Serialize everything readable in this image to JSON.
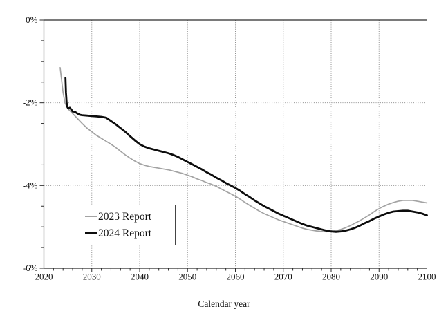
{
  "chart_data": {
    "type": "line",
    "title": "",
    "xlabel": "Calendar year",
    "ylabel": "",
    "xlim": [
      2020,
      2100
    ],
    "ylim": [
      -6,
      0
    ],
    "grid": "dotted",
    "legend_position": "inside-lower-left",
    "colors": {
      "grid": "#8f8f8f",
      "axis": "#2b2b2b",
      "text": "#111111"
    },
    "x_minor_step": 2,
    "y_minor_step": 0.5,
    "xticks": [
      {
        "v": 2020,
        "label": "2020"
      },
      {
        "v": 2030,
        "label": "2030"
      },
      {
        "v": 2040,
        "label": "2040"
      },
      {
        "v": 2050,
        "label": "2050"
      },
      {
        "v": 2060,
        "label": "2060"
      },
      {
        "v": 2070,
        "label": "2070"
      },
      {
        "v": 2080,
        "label": "2080"
      },
      {
        "v": 2090,
        "label": "2090"
      },
      {
        "v": 2100,
        "label": "2100"
      }
    ],
    "yticks": [
      {
        "v": 0,
        "label": "0%"
      },
      {
        "v": -2,
        "label": "-2%"
      },
      {
        "v": -4,
        "label": "-4%"
      },
      {
        "v": -6,
        "label": "-6%"
      }
    ],
    "series": [
      {
        "name": "2023 Report",
        "color": "#a3a3a3",
        "width": 1.7,
        "points": [
          [
            2023.4,
            -1.15
          ],
          [
            2023.7,
            -1.45
          ],
          [
            2024.0,
            -1.75
          ],
          [
            2024.4,
            -2.0
          ],
          [
            2025,
            -2.14
          ],
          [
            2026,
            -2.26
          ],
          [
            2027,
            -2.38
          ],
          [
            2028,
            -2.5
          ],
          [
            2029,
            -2.61
          ],
          [
            2030,
            -2.7
          ],
          [
            2031,
            -2.79
          ],
          [
            2032,
            -2.86
          ],
          [
            2033,
            -2.93
          ],
          [
            2034,
            -3.0
          ],
          [
            2035,
            -3.08
          ],
          [
            2036,
            -3.17
          ],
          [
            2037,
            -3.26
          ],
          [
            2038,
            -3.34
          ],
          [
            2039,
            -3.41
          ],
          [
            2040,
            -3.47
          ],
          [
            2041,
            -3.51
          ],
          [
            2042,
            -3.54
          ],
          [
            2043,
            -3.56
          ],
          [
            2044,
            -3.58
          ],
          [
            2045,
            -3.6
          ],
          [
            2046,
            -3.62
          ],
          [
            2047,
            -3.65
          ],
          [
            2048,
            -3.68
          ],
          [
            2049,
            -3.71
          ],
          [
            2050,
            -3.75
          ],
          [
            2051,
            -3.79
          ],
          [
            2052,
            -3.84
          ],
          [
            2053,
            -3.88
          ],
          [
            2054,
            -3.93
          ],
          [
            2055,
            -3.97
          ],
          [
            2056,
            -4.02
          ],
          [
            2057,
            -4.08
          ],
          [
            2058,
            -4.14
          ],
          [
            2059,
            -4.2
          ],
          [
            2060,
            -4.26
          ],
          [
            2061,
            -4.33
          ],
          [
            2062,
            -4.41
          ],
          [
            2063,
            -4.48
          ],
          [
            2064,
            -4.55
          ],
          [
            2065,
            -4.62
          ],
          [
            2066,
            -4.68
          ],
          [
            2067,
            -4.73
          ],
          [
            2068,
            -4.78
          ],
          [
            2069,
            -4.83
          ],
          [
            2070,
            -4.87
          ],
          [
            2071,
            -4.91
          ],
          [
            2072,
            -4.95
          ],
          [
            2073,
            -4.99
          ],
          [
            2074,
            -5.03
          ],
          [
            2075,
            -5.06
          ],
          [
            2076,
            -5.08
          ],
          [
            2077,
            -5.1
          ],
          [
            2078,
            -5.11
          ],
          [
            2079,
            -5.12
          ],
          [
            2080,
            -5.11
          ],
          [
            2081,
            -5.09
          ],
          [
            2082,
            -5.06
          ],
          [
            2083,
            -5.02
          ],
          [
            2084,
            -4.97
          ],
          [
            2085,
            -4.91
          ],
          [
            2086,
            -4.85
          ],
          [
            2087,
            -4.78
          ],
          [
            2088,
            -4.71
          ],
          [
            2089,
            -4.63
          ],
          [
            2090,
            -4.56
          ],
          [
            2091,
            -4.5
          ],
          [
            2092,
            -4.45
          ],
          [
            2093,
            -4.41
          ],
          [
            2094,
            -4.38
          ],
          [
            2095,
            -4.36
          ],
          [
            2096,
            -4.36
          ],
          [
            2097,
            -4.36
          ],
          [
            2098,
            -4.38
          ],
          [
            2099,
            -4.4
          ],
          [
            2100,
            -4.42
          ]
        ]
      },
      {
        "name": "2024 Report",
        "color": "#0d0d0d",
        "width": 2.8,
        "points": [
          [
            2024.5,
            -1.4
          ],
          [
            2024.6,
            -1.75
          ],
          [
            2024.75,
            -2.0
          ],
          [
            2024.9,
            -2.1
          ],
          [
            2025.1,
            -2.14
          ],
          [
            2025.4,
            -2.12
          ],
          [
            2025.7,
            -2.16
          ],
          [
            2026,
            -2.21
          ],
          [
            2026.5,
            -2.22
          ],
          [
            2027,
            -2.26
          ],
          [
            2027.5,
            -2.29
          ],
          [
            2028,
            -2.3
          ],
          [
            2029,
            -2.31
          ],
          [
            2030,
            -2.32
          ],
          [
            2031,
            -2.33
          ],
          [
            2032,
            -2.34
          ],
          [
            2033,
            -2.36
          ],
          [
            2034,
            -2.44
          ],
          [
            2035,
            -2.52
          ],
          [
            2036,
            -2.61
          ],
          [
            2037,
            -2.7
          ],
          [
            2038,
            -2.81
          ],
          [
            2039,
            -2.91
          ],
          [
            2040,
            -3.0
          ],
          [
            2041,
            -3.06
          ],
          [
            2042,
            -3.1
          ],
          [
            2043,
            -3.13
          ],
          [
            2044,
            -3.16
          ],
          [
            2045,
            -3.19
          ],
          [
            2046,
            -3.22
          ],
          [
            2047,
            -3.26
          ],
          [
            2048,
            -3.31
          ],
          [
            2049,
            -3.37
          ],
          [
            2050,
            -3.43
          ],
          [
            2051,
            -3.49
          ],
          [
            2052,
            -3.55
          ],
          [
            2053,
            -3.61
          ],
          [
            2054,
            -3.68
          ],
          [
            2055,
            -3.74
          ],
          [
            2056,
            -3.81
          ],
          [
            2057,
            -3.87
          ],
          [
            2058,
            -3.94
          ],
          [
            2059,
            -4.0
          ],
          [
            2060,
            -4.06
          ],
          [
            2061,
            -4.13
          ],
          [
            2062,
            -4.21
          ],
          [
            2063,
            -4.28
          ],
          [
            2064,
            -4.36
          ],
          [
            2065,
            -4.43
          ],
          [
            2066,
            -4.5
          ],
          [
            2067,
            -4.56
          ],
          [
            2068,
            -4.62
          ],
          [
            2069,
            -4.68
          ],
          [
            2070,
            -4.73
          ],
          [
            2071,
            -4.78
          ],
          [
            2072,
            -4.83
          ],
          [
            2073,
            -4.88
          ],
          [
            2074,
            -4.93
          ],
          [
            2075,
            -4.97
          ],
          [
            2076,
            -5.0
          ],
          [
            2077,
            -5.03
          ],
          [
            2078,
            -5.06
          ],
          [
            2079,
            -5.09
          ],
          [
            2080,
            -5.11
          ],
          [
            2081,
            -5.12
          ],
          [
            2082,
            -5.11
          ],
          [
            2083,
            -5.09
          ],
          [
            2084,
            -5.06
          ],
          [
            2085,
            -5.02
          ],
          [
            2086,
            -4.97
          ],
          [
            2087,
            -4.91
          ],
          [
            2088,
            -4.86
          ],
          [
            2089,
            -4.8
          ],
          [
            2090,
            -4.75
          ],
          [
            2091,
            -4.7
          ],
          [
            2092,
            -4.66
          ],
          [
            2093,
            -4.63
          ],
          [
            2094,
            -4.62
          ],
          [
            2095,
            -4.61
          ],
          [
            2096,
            -4.61
          ],
          [
            2097,
            -4.63
          ],
          [
            2098,
            -4.65
          ],
          [
            2099,
            -4.68
          ],
          [
            2100,
            -4.72
          ]
        ]
      }
    ]
  }
}
